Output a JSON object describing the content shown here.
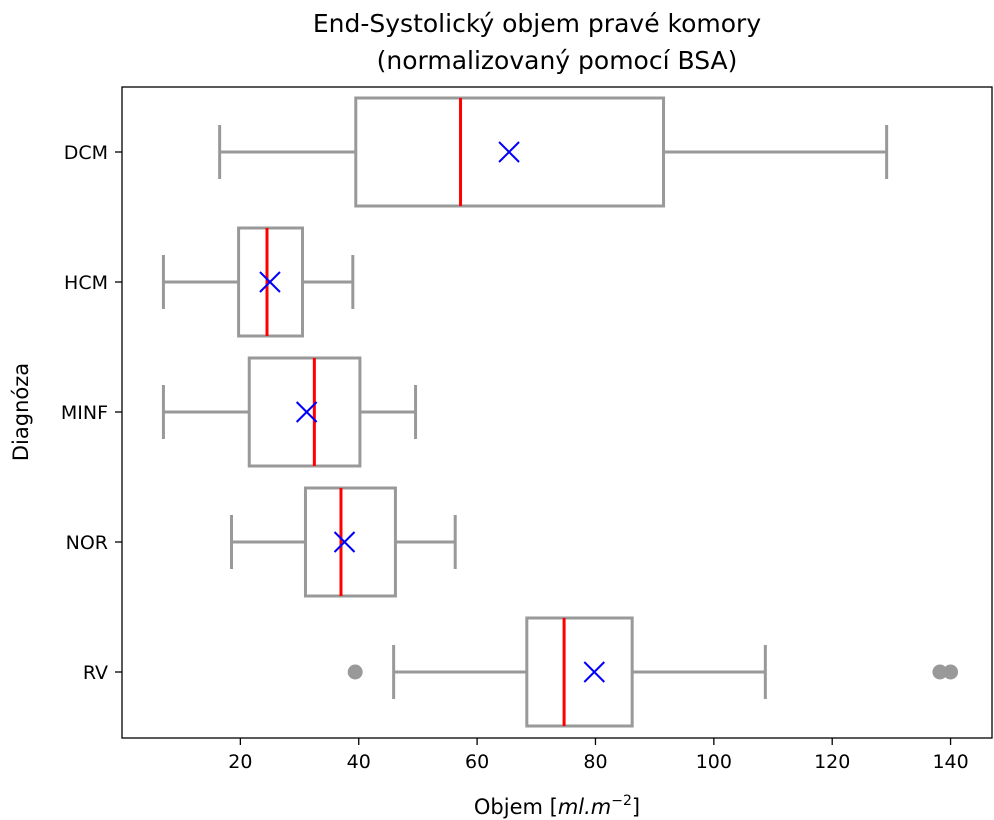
{
  "chart_data": {
    "type": "box",
    "orientation": "horizontal",
    "title_line1": "End-Systolický objem pravé komory",
    "title_line2": "(normalizovaný pomocí BSA)",
    "xlabel_main": "Objem [",
    "xlabel_unit": "ml.m",
    "xlabel_exp": "−2",
    "xlabel_close": "]",
    "ylabel": "Diagnóza",
    "xlim": [
      0,
      147
    ],
    "xticks": [
      20,
      40,
      60,
      80,
      100,
      120,
      140
    ],
    "xtick_labels": [
      "20",
      "40",
      "60",
      "80",
      "100",
      "120",
      "140"
    ],
    "categories": [
      "DCM",
      "HCM",
      "MINF",
      "NOR",
      "RV"
    ],
    "boxes": [
      {
        "label": "DCM",
        "whisker_low": 16.5,
        "q1": 39.5,
        "median": 57.2,
        "q3": 91.5,
        "whisker_high": 129.2,
        "mean": 65.4,
        "outliers": []
      },
      {
        "label": "HCM",
        "whisker_low": 7.0,
        "q1": 19.7,
        "median": 24.5,
        "q3": 30.5,
        "whisker_high": 39.0,
        "mean": 25.0,
        "outliers": []
      },
      {
        "label": "MINF",
        "whisker_low": 7.0,
        "q1": 21.5,
        "median": 32.5,
        "q3": 40.2,
        "whisker_high": 49.6,
        "mean": 31.2,
        "outliers": []
      },
      {
        "label": "NOR",
        "whisker_low": 18.5,
        "q1": 31.0,
        "median": 37.0,
        "q3": 46.2,
        "whisker_high": 56.3,
        "mean": 37.6,
        "outliers": []
      },
      {
        "label": "RV",
        "whisker_low": 45.9,
        "q1": 68.4,
        "median": 74.7,
        "q3": 86.2,
        "whisker_high": 108.7,
        "mean": 79.8,
        "outliers": [
          39.4,
          138.2,
          140.0
        ]
      }
    ],
    "colors": {
      "box": "#999999",
      "median": "#ff0000",
      "mean": "#0000ff",
      "outlier": "#999999",
      "axes": "#000000"
    },
    "grid": false,
    "legend": "none"
  }
}
